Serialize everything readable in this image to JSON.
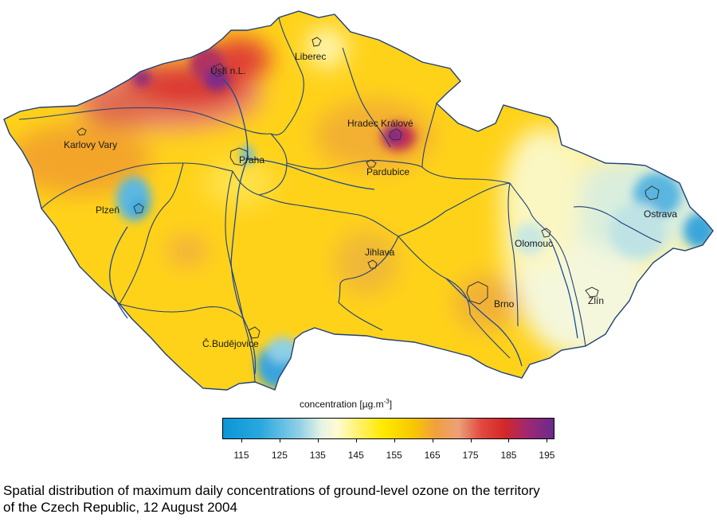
{
  "map": {
    "cities": [
      {
        "id": "usti",
        "label": "Ústí n.L."
      },
      {
        "id": "liberec",
        "label": "Liberec"
      },
      {
        "id": "karlovy-vary",
        "label": "Karlovy Vary"
      },
      {
        "id": "hradec-kralove",
        "label": "Hradec Králové"
      },
      {
        "id": "praha",
        "label": "Praha"
      },
      {
        "id": "pardubice",
        "label": "Pardubice"
      },
      {
        "id": "plzen",
        "label": "Plzeň"
      },
      {
        "id": "ostrava",
        "label": "Ostrava"
      },
      {
        "id": "olomouc",
        "label": "Olomouc"
      },
      {
        "id": "jihlava",
        "label": "Jihlava"
      },
      {
        "id": "brno",
        "label": "Brno"
      },
      {
        "id": "zlin",
        "label": "Zlín"
      },
      {
        "id": "budejovice",
        "label": "Č.Budějovice"
      }
    ]
  },
  "legend": {
    "title_text": "concentration [µg.m",
    "title_exp": "-3",
    "title_end": "]",
    "min": 110,
    "max": 197,
    "ticks": [
      "115",
      "125",
      "135",
      "145",
      "155",
      "165",
      "175",
      "185",
      "195"
    ],
    "colors": [
      {
        "value": 110,
        "color": "#0a96d8"
      },
      {
        "value": 120,
        "color": "#2aa8de"
      },
      {
        "value": 130,
        "color": "#8fd0e6"
      },
      {
        "value": 136,
        "color": "#e6f4e4"
      },
      {
        "value": 140,
        "color": "#fffbd2"
      },
      {
        "value": 146,
        "color": "#fff166"
      },
      {
        "value": 152,
        "color": "#ffea00"
      },
      {
        "value": 160,
        "color": "#f8c800"
      },
      {
        "value": 166,
        "color": "#f0a040"
      },
      {
        "value": 172,
        "color": "#eca078"
      },
      {
        "value": 178,
        "color": "#e24840"
      },
      {
        "value": 184,
        "color": "#d42828"
      },
      {
        "value": 190,
        "color": "#a02870"
      },
      {
        "value": 197,
        "color": "#6a2a8e"
      }
    ]
  },
  "caption": {
    "line1": "Spatial distribution of maximum daily concentrations of ground-level ozone on the territory",
    "line2": "of the Czech Republic, 12 August 2004"
  }
}
